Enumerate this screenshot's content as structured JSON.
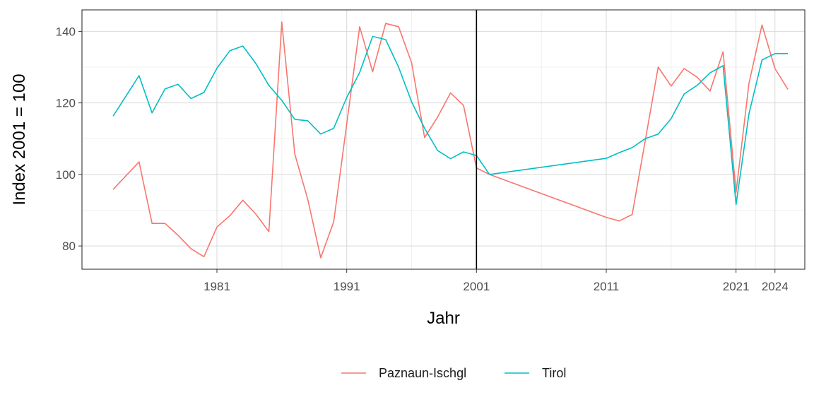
{
  "chart_data": {
    "type": "line",
    "title": "",
    "xlabel": "Jahr",
    "ylabel": "Index 2001 = 100",
    "xlim": [
      1970.6,
      2026.3
    ],
    "ylim": [
      73.5,
      146
    ],
    "x_ticks": [
      1981,
      1991,
      2001,
      2011,
      2021,
      2024
    ],
    "y_ticks": [
      80,
      100,
      120,
      140
    ],
    "reference_line_x": 2001,
    "grid": true,
    "legend_position": "bottom",
    "series": [
      {
        "name": "Paznaun-Ischgl",
        "color": "#F8766D",
        "points": [
          [
            1973,
            95.8
          ],
          [
            1975,
            103.5
          ],
          [
            1976,
            86.3
          ],
          [
            1977,
            86.3
          ],
          [
            1978,
            83.0
          ],
          [
            1979,
            79.2
          ],
          [
            1980,
            77.0
          ],
          [
            1981,
            85.3
          ],
          [
            1982,
            88.5
          ],
          [
            1983,
            92.8
          ],
          [
            1984,
            88.9
          ],
          [
            1985,
            84.0
          ],
          [
            1986,
            142.6
          ],
          [
            1987,
            105.7
          ],
          [
            1988,
            93.0
          ],
          [
            1989,
            76.7
          ],
          [
            1990,
            86.8
          ],
          [
            1992,
            141.3
          ],
          [
            1993,
            128.7
          ],
          [
            1994,
            142.2
          ],
          [
            1995,
            141.3
          ],
          [
            1996,
            131.2
          ],
          [
            1997,
            110.3
          ],
          [
            1998,
            116.0
          ],
          [
            1999,
            122.8
          ],
          [
            2000,
            119.3
          ],
          [
            2001,
            101.8
          ],
          [
            2002,
            100.0
          ],
          [
            2011,
            88.0
          ],
          [
            2012,
            87.0
          ],
          [
            2013,
            88.8
          ],
          [
            2015,
            130.0
          ],
          [
            2016,
            124.7
          ],
          [
            2017,
            129.6
          ],
          [
            2018,
            127.2
          ],
          [
            2019,
            123.3
          ],
          [
            2020,
            134.3
          ],
          [
            2021,
            95.0
          ],
          [
            2022,
            125.5
          ],
          [
            2023,
            141.8
          ],
          [
            2024,
            129.6
          ],
          [
            2025,
            123.8
          ]
        ]
      },
      {
        "name": "Tirol",
        "color": "#00BFC4",
        "points": [
          [
            1973,
            116.3
          ],
          [
            1975,
            127.6
          ],
          [
            1976,
            117.2
          ],
          [
            1977,
            123.9
          ],
          [
            1978,
            125.2
          ],
          [
            1979,
            121.2
          ],
          [
            1980,
            122.9
          ],
          [
            1981,
            129.7
          ],
          [
            1982,
            134.6
          ],
          [
            1983,
            135.9
          ],
          [
            1984,
            131.0
          ],
          [
            1985,
            124.9
          ],
          [
            1986,
            120.7
          ],
          [
            1987,
            115.4
          ],
          [
            1988,
            115.0
          ],
          [
            1989,
            111.3
          ],
          [
            1990,
            112.9
          ],
          [
            1991,
            121.5
          ],
          [
            1992,
            128.5
          ],
          [
            1993,
            138.6
          ],
          [
            1994,
            137.7
          ],
          [
            1995,
            130.0
          ],
          [
            1996,
            120.3
          ],
          [
            1997,
            112.9
          ],
          [
            1998,
            106.7
          ],
          [
            1999,
            104.4
          ],
          [
            2000,
            106.3
          ],
          [
            2001,
            105.3
          ],
          [
            2002,
            100.0
          ],
          [
            2011,
            104.5
          ],
          [
            2012,
            106.1
          ],
          [
            2013,
            107.5
          ],
          [
            2014,
            110.0
          ],
          [
            2015,
            111.3
          ],
          [
            2016,
            115.6
          ],
          [
            2017,
            122.5
          ],
          [
            2018,
            124.9
          ],
          [
            2019,
            128.4
          ],
          [
            2020,
            130.4
          ],
          [
            2021,
            91.6
          ],
          [
            2022,
            117.0
          ],
          [
            2023,
            132.0
          ],
          [
            2024,
            133.8
          ],
          [
            2025,
            133.8
          ]
        ]
      }
    ]
  }
}
